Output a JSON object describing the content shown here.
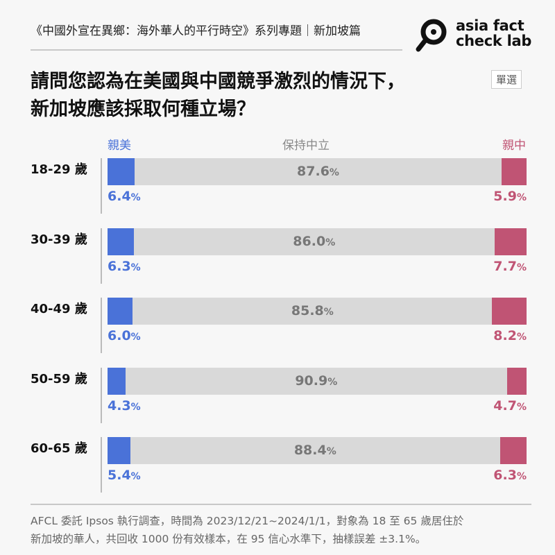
{
  "header": {
    "series_title": "《中國外宣在異鄉：海外華人的平行時空》系列專題｜新加坡篇",
    "logo_text_line1": "asia fact",
    "logo_text_line2": "check lab"
  },
  "question": {
    "line1": "請問您認為在美國與中國競爭激烈的情況下，",
    "line2": "新加坡應該採取何種立場？",
    "badge": "單選"
  },
  "chart_data": {
    "type": "bar",
    "stacked": true,
    "orientation": "horizontal",
    "categories": [
      "18-29 歲",
      "30-39 歲",
      "40-49 歲",
      "50-59 歲",
      "60-65 歲"
    ],
    "series": [
      {
        "name": "親美",
        "color": "#4a72d8",
        "values": [
          6.4,
          6.3,
          6.0,
          4.3,
          5.4
        ]
      },
      {
        "name": "保持中立",
        "color": "#d9d9d9",
        "values": [
          87.6,
          86.0,
          85.8,
          90.9,
          88.4
        ]
      },
      {
        "name": "親中",
        "color": "#c05474",
        "values": [
          5.9,
          7.7,
          8.2,
          4.7,
          6.3
        ]
      }
    ],
    "unit": "%",
    "xlim": [
      0,
      100
    ],
    "legend": "top"
  },
  "footnote": {
    "line1": "AFCL 委託 Ipsos 執行調查，時間為 2023/12/21~2024/1/1，對象為 18 至 65 歲居住於",
    "line2": "新加坡的華人，共回收 1000 份有效樣本，在 95 信心水準下，抽樣誤差 ±3.1%。"
  }
}
